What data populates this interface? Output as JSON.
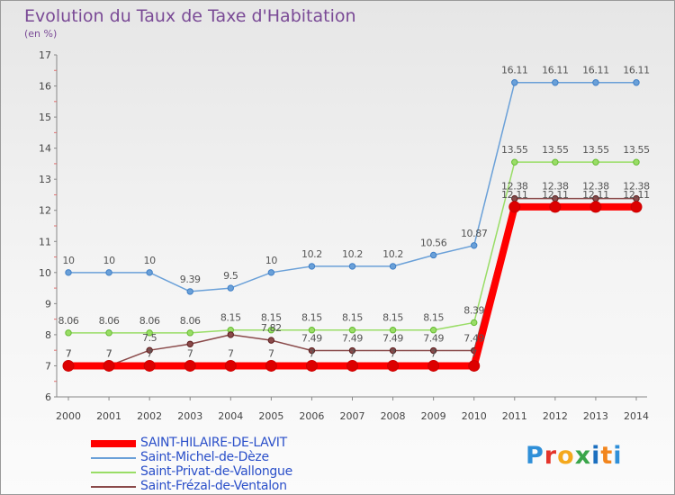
{
  "title": "Evolution du Taux de Taxe d'Habitation",
  "unit": "(en %)",
  "logo": {
    "letters": [
      {
        "ch": "P",
        "color": "#2f8fd8"
      },
      {
        "ch": "r",
        "color": "#e4342b"
      },
      {
        "ch": "o",
        "color": "#f4a81c"
      },
      {
        "ch": "x",
        "color": "#3aa54a"
      },
      {
        "ch": "i",
        "color": "#1c6fbf"
      },
      {
        "ch": "t",
        "color": "#f2851d"
      },
      {
        "ch": "i",
        "color": "#2f8fd8"
      }
    ]
  },
  "chart_data": {
    "type": "line",
    "x": [
      "2000",
      "2001",
      "2002",
      "2003",
      "2004",
      "2005",
      "2006",
      "2007",
      "2008",
      "2009",
      "2010",
      "2011",
      "2012",
      "2013",
      "2014"
    ],
    "ylim": [
      6,
      17
    ],
    "yticks": [
      6,
      7,
      8,
      9,
      10,
      11,
      12,
      13,
      14,
      15,
      16,
      17
    ],
    "grid": false,
    "legend_position": "bottom-left",
    "series": [
      {
        "name": "SAINT-HILAIRE-DE-LAVIT",
        "color": "#ff0000",
        "marker": "#cc0000",
        "values": [
          7,
          7,
          7,
          7,
          7,
          7,
          7,
          7,
          7,
          7,
          7,
          12.11,
          12.11,
          12.11,
          12.11
        ],
        "labels": [
          "7",
          "7",
          "7",
          "7",
          "7",
          "7",
          "7",
          "7",
          "7",
          "7",
          "7",
          "12.11",
          "12.11",
          "12.11",
          "12.11"
        ]
      },
      {
        "name": "Saint-Michel-de-Dèze",
        "color": "#6aa0d8",
        "marker": "#3f7fc7",
        "values": [
          10,
          10,
          10,
          9.39,
          9.5,
          10,
          10.2,
          10.2,
          10.2,
          10.56,
          10.87,
          16.11,
          16.11,
          16.11,
          16.11
        ],
        "labels": [
          "10",
          "10",
          "10",
          "9.39",
          "9.5",
          "10",
          "10.2",
          "10.2",
          "10.2",
          "10.56",
          "10.87",
          "16.11",
          "16.11",
          "16.11",
          "16.11"
        ]
      },
      {
        "name": "Saint-Privat-de-Vallongue",
        "color": "#99dd66",
        "marker": "#66bb33",
        "values": [
          8.06,
          8.06,
          8.06,
          8.06,
          8.15,
          8.15,
          8.15,
          8.15,
          8.15,
          8.15,
          8.39,
          13.55,
          13.55,
          13.55,
          13.55
        ],
        "labels": [
          "8.06",
          "8.06",
          "8.06",
          "8.06",
          "8.15",
          "8.15",
          "8.15",
          "8.15",
          "8.15",
          "8.15",
          "8.39",
          "13.55",
          "13.55",
          "13.55",
          "13.55"
        ]
      },
      {
        "name": "Saint-Frézal-de-Ventalon",
        "color": "#8a4a4a",
        "marker": "#5c1f1f",
        "values": [
          7,
          7,
          7.5,
          7.7,
          8,
          7.82,
          7.49,
          7.49,
          7.49,
          7.49,
          7.49,
          12.38,
          12.38,
          12.38,
          12.38
        ],
        "labels": [
          "7",
          "7",
          "7.5",
          "",
          "",
          "7.82",
          "7.49",
          "7.49",
          "7.49",
          "7.49",
          "7.49",
          "12.38",
          "12.38",
          "12.38",
          "12.38"
        ]
      }
    ]
  }
}
